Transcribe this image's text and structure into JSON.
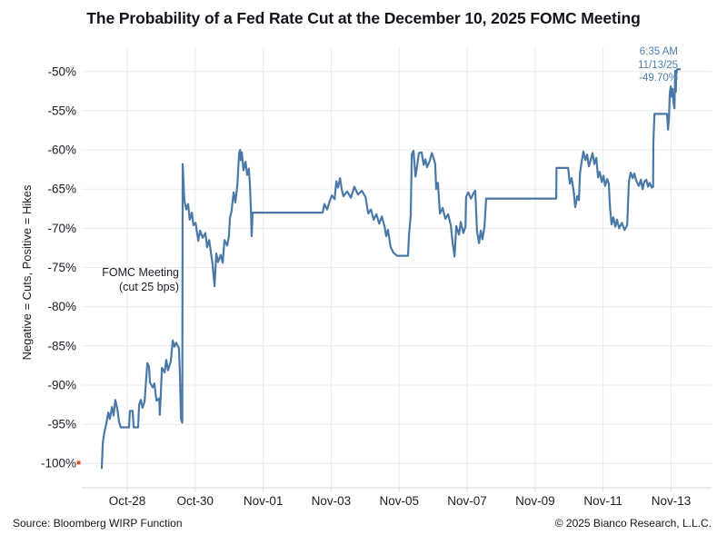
{
  "title": "The Probability of a Fed Rate Cut at the December 10, 2025 FOMC Meeting",
  "y_axis_title": "Negative = Cuts, Positive = Hikes",
  "annotations": {
    "fomc": {
      "line1": "FOMC Meeting",
      "line2": "(cut 25 bps)"
    },
    "latest": {
      "time": "6:35 AM",
      "date": "11/13/25",
      "value": "-49.70%"
    }
  },
  "footer": {
    "source": "Source: Bloomberg WIRP Function",
    "copyright": "© 2025 Bianco Research, L.L.C."
  },
  "colors": {
    "line": "#4a79a7",
    "annotation_blue": "#4d80ad",
    "grid": "#ebebee",
    "axis": "#d9d9de",
    "text": "#1c1c26",
    "start_marker": "#d9542b"
  },
  "chart_data": {
    "type": "line",
    "title": "The Probability of a Fed Rate Cut at the December 10, 2025 FOMC Meeting",
    "xlabel": "",
    "ylabel": "Negative = Cuts, Positive = Hikes",
    "x_unit": "days since Oct-28 00:00 (2025)",
    "xlim": [
      -1.337,
      17.19
    ],
    "ylim": [
      -103.1,
      -46.9
    ],
    "grid": true,
    "legend": "none",
    "x_ticks": [
      {
        "d": 0,
        "label": "Oct-28"
      },
      {
        "d": 2,
        "label": "Oct-30"
      },
      {
        "d": 4,
        "label": "Nov-01"
      },
      {
        "d": 6,
        "label": "Nov-03"
      },
      {
        "d": 8,
        "label": "Nov-05"
      },
      {
        "d": 10,
        "label": "Nov-07"
      },
      {
        "d": 12,
        "label": "Nov-09"
      },
      {
        "d": 14,
        "label": "Nov-11"
      },
      {
        "d": 16,
        "label": "Nov-13"
      }
    ],
    "y_ticks": [
      {
        "v": -50,
        "label": "-50%"
      },
      {
        "v": -55,
        "label": "-55%"
      },
      {
        "v": -60,
        "label": "-60%"
      },
      {
        "v": -65,
        "label": "-65%"
      },
      {
        "v": -70,
        "label": "-70%"
      },
      {
        "v": -75,
        "label": "-75%"
      },
      {
        "v": -80,
        "label": "-80%"
      },
      {
        "v": -85,
        "label": "-85%"
      },
      {
        "v": -90,
        "label": "-90%"
      },
      {
        "v": -95,
        "label": "-95%"
      },
      {
        "v": -100,
        "label": "-100%"
      }
    ],
    "start_marker": {
      "d": -1.43,
      "value": -99.9
    },
    "last_point": {
      "date": "11/13/25",
      "time": "6:35 AM",
      "value_pct": -49.7
    },
    "series": [
      {
        "name": "probability",
        "points": [
          [
            -0.75,
            -100.6
          ],
          [
            -0.72,
            -97.4
          ],
          [
            -0.67,
            -96.0
          ],
          [
            -0.61,
            -94.8
          ],
          [
            -0.56,
            -93.5
          ],
          [
            -0.51,
            -94.3
          ],
          [
            -0.45,
            -92.8
          ],
          [
            -0.4,
            -93.9
          ],
          [
            -0.35,
            -91.9
          ],
          [
            -0.29,
            -93.1
          ],
          [
            -0.24,
            -94.7
          ],
          [
            -0.19,
            -95.4
          ],
          [
            0.05,
            -95.4
          ],
          [
            0.08,
            -93.3
          ],
          [
            0.16,
            -93.3
          ],
          [
            0.19,
            -95.4
          ],
          [
            0.32,
            -95.4
          ],
          [
            0.35,
            -92.5
          ],
          [
            0.4,
            -91.9
          ],
          [
            0.45,
            -92.9
          ],
          [
            0.51,
            -92.1
          ],
          [
            0.59,
            -87.2
          ],
          [
            0.64,
            -87.6
          ],
          [
            0.67,
            -89.7
          ],
          [
            0.75,
            -90.3
          ],
          [
            0.8,
            -89.8
          ],
          [
            0.86,
            -92.0
          ],
          [
            0.94,
            -91.7
          ],
          [
            0.96,
            -93.8
          ],
          [
            1.02,
            -87.8
          ],
          [
            1.1,
            -88.4
          ],
          [
            1.15,
            -86.8
          ],
          [
            1.2,
            -88.1
          ],
          [
            1.28,
            -87.0
          ],
          [
            1.34,
            -84.3
          ],
          [
            1.39,
            -85.1
          ],
          [
            1.44,
            -84.6
          ],
          [
            1.52,
            -85.3
          ],
          [
            1.55,
            -88.6
          ],
          [
            1.58,
            -94.3
          ],
          [
            1.62,
            -94.8
          ],
          [
            1.63,
            -61.8
          ],
          [
            1.68,
            -66.5
          ],
          [
            1.74,
            -67.6
          ],
          [
            1.79,
            -66.9
          ],
          [
            1.84,
            -68.9
          ],
          [
            1.9,
            -68.0
          ],
          [
            1.95,
            -69.6
          ],
          [
            2.01,
            -69.3
          ],
          [
            2.09,
            -71.6
          ],
          [
            2.14,
            -70.3
          ],
          [
            2.22,
            -71.2
          ],
          [
            2.3,
            -70.6
          ],
          [
            2.35,
            -72.4
          ],
          [
            2.41,
            -71.5
          ],
          [
            2.46,
            -73.0
          ],
          [
            2.51,
            -74.6
          ],
          [
            2.57,
            -77.4
          ],
          [
            2.62,
            -73.2
          ],
          [
            2.67,
            -74.3
          ],
          [
            2.75,
            -73.4
          ],
          [
            2.81,
            -74.4
          ],
          [
            2.86,
            -71.5
          ],
          [
            2.94,
            -72.2
          ],
          [
            2.99,
            -71.0
          ],
          [
            3.02,
            -68.7
          ],
          [
            3.07,
            -67.8
          ],
          [
            3.13,
            -65.4
          ],
          [
            3.18,
            -66.7
          ],
          [
            3.24,
            -64.5
          ],
          [
            3.29,
            -60.4
          ],
          [
            3.32,
            -60.0
          ],
          [
            3.34,
            -61.3
          ],
          [
            3.37,
            -60.3
          ],
          [
            3.42,
            -62.6
          ],
          [
            3.48,
            -61.5
          ],
          [
            3.53,
            -63.2
          ],
          [
            3.58,
            -62.4
          ],
          [
            3.61,
            -64.4
          ],
          [
            3.64,
            -67.9
          ],
          [
            3.66,
            -71.0
          ],
          [
            3.69,
            -68.0
          ],
          [
            5.75,
            -68.0
          ],
          [
            5.8,
            -66.9
          ],
          [
            5.88,
            -67.6
          ],
          [
            5.96,
            -66.5
          ],
          [
            6.02,
            -65.8
          ],
          [
            6.1,
            -66.3
          ],
          [
            6.15,
            -64.0
          ],
          [
            6.2,
            -64.8
          ],
          [
            6.26,
            -63.6
          ],
          [
            6.31,
            -65.0
          ],
          [
            6.36,
            -65.9
          ],
          [
            6.47,
            -65.3
          ],
          [
            6.58,
            -66.1
          ],
          [
            6.68,
            -64.7
          ],
          [
            6.79,
            -65.7
          ],
          [
            6.9,
            -65.2
          ],
          [
            7.01,
            -66.0
          ],
          [
            7.09,
            -68.1
          ],
          [
            7.17,
            -67.6
          ],
          [
            7.25,
            -68.9
          ],
          [
            7.33,
            -68.2
          ],
          [
            7.41,
            -69.4
          ],
          [
            7.49,
            -68.5
          ],
          [
            7.57,
            -69.8
          ],
          [
            7.62,
            -71.0
          ],
          [
            7.67,
            -70.2
          ],
          [
            7.75,
            -72.4
          ],
          [
            7.83,
            -73.1
          ],
          [
            7.94,
            -73.5
          ],
          [
            8.26,
            -73.5
          ],
          [
            8.29,
            -70.8
          ],
          [
            8.34,
            -68.3
          ],
          [
            8.37,
            -60.6
          ],
          [
            8.42,
            -60.1
          ],
          [
            8.48,
            -63.4
          ],
          [
            8.53,
            -62.0
          ],
          [
            8.58,
            -60.4
          ],
          [
            8.66,
            -60.3
          ],
          [
            8.72,
            -61.9
          ],
          [
            8.77,
            -61.2
          ],
          [
            8.82,
            -62.2
          ],
          [
            8.9,
            -61.4
          ],
          [
            8.96,
            -60.4
          ],
          [
            9.01,
            -61.0
          ],
          [
            9.06,
            -61.8
          ],
          [
            9.09,
            -65.0
          ],
          [
            9.14,
            -64.2
          ],
          [
            9.2,
            -68.1
          ],
          [
            9.28,
            -67.4
          ],
          [
            9.36,
            -68.8
          ],
          [
            9.44,
            -68.2
          ],
          [
            9.52,
            -69.6
          ],
          [
            9.57,
            -71.8
          ],
          [
            9.63,
            -73.6
          ],
          [
            9.68,
            -69.7
          ],
          [
            9.76,
            -70.8
          ],
          [
            9.81,
            -69.2
          ],
          [
            9.89,
            -70.6
          ],
          [
            9.95,
            -69.8
          ],
          [
            9.97,
            -66.0
          ],
          [
            10.03,
            -65.4
          ],
          [
            10.11,
            -66.2
          ],
          [
            10.19,
            -65.5
          ],
          [
            10.24,
            -65.2
          ],
          [
            10.29,
            -70.4
          ],
          [
            10.35,
            -71.9
          ],
          [
            10.4,
            -70.3
          ],
          [
            10.45,
            -71.4
          ],
          [
            10.51,
            -69.8
          ],
          [
            10.56,
            -66.2
          ],
          [
            12.62,
            -66.2
          ],
          [
            12.63,
            -62.3
          ],
          [
            12.97,
            -62.3
          ],
          [
            13.02,
            -64.3
          ],
          [
            13.07,
            -63.6
          ],
          [
            13.13,
            -65.1
          ],
          [
            13.18,
            -67.3
          ],
          [
            13.24,
            -65.9
          ],
          [
            13.29,
            -66.4
          ],
          [
            13.32,
            -63.0
          ],
          [
            13.37,
            -61.5
          ],
          [
            13.42,
            -60.2
          ],
          [
            13.48,
            -61.3
          ],
          [
            13.53,
            -60.6
          ],
          [
            13.58,
            -62.1
          ],
          [
            13.64,
            -61.2
          ],
          [
            13.69,
            -60.4
          ],
          [
            13.74,
            -61.8
          ],
          [
            13.8,
            -61.0
          ],
          [
            13.85,
            -63.5
          ],
          [
            13.9,
            -62.8
          ],
          [
            13.96,
            -64.1
          ],
          [
            14.01,
            -63.3
          ],
          [
            14.06,
            -64.6
          ],
          [
            14.12,
            -63.7
          ],
          [
            14.17,
            -64.3
          ],
          [
            14.2,
            -67.3
          ],
          [
            14.25,
            -69.5
          ],
          [
            14.3,
            -68.6
          ],
          [
            14.36,
            -69.8
          ],
          [
            14.41,
            -68.9
          ],
          [
            14.47,
            -70.0
          ],
          [
            14.55,
            -69.3
          ],
          [
            14.63,
            -70.2
          ],
          [
            14.71,
            -69.6
          ],
          [
            14.73,
            -67.0
          ],
          [
            14.76,
            -64.0
          ],
          [
            14.81,
            -62.9
          ],
          [
            14.87,
            -63.6
          ],
          [
            14.92,
            -63.0
          ],
          [
            14.97,
            -63.9
          ],
          [
            15.05,
            -64.6
          ],
          [
            15.11,
            -63.8
          ],
          [
            15.16,
            -65.0
          ],
          [
            15.21,
            -64.1
          ],
          [
            15.27,
            -63.8
          ],
          [
            15.32,
            -64.7
          ],
          [
            15.37,
            -64.2
          ],
          [
            15.43,
            -64.8
          ],
          [
            15.47,
            -64.7
          ],
          [
            15.48,
            -58.9
          ],
          [
            15.51,
            -55.4
          ],
          [
            15.88,
            -55.4
          ],
          [
            15.91,
            -57.4
          ],
          [
            15.94,
            -55.9
          ],
          [
            15.96,
            -52.8
          ],
          [
            15.99,
            -51.9
          ],
          [
            16.02,
            -53.2
          ],
          [
            16.04,
            -52.2
          ],
          [
            16.07,
            -54.0
          ],
          [
            16.1,
            -54.7
          ],
          [
            16.12,
            -49.9
          ],
          [
            16.14,
            -52.6
          ],
          [
            16.15,
            -50.5
          ],
          [
            16.18,
            -49.7
          ],
          [
            16.26,
            -49.7
          ]
        ]
      }
    ]
  }
}
